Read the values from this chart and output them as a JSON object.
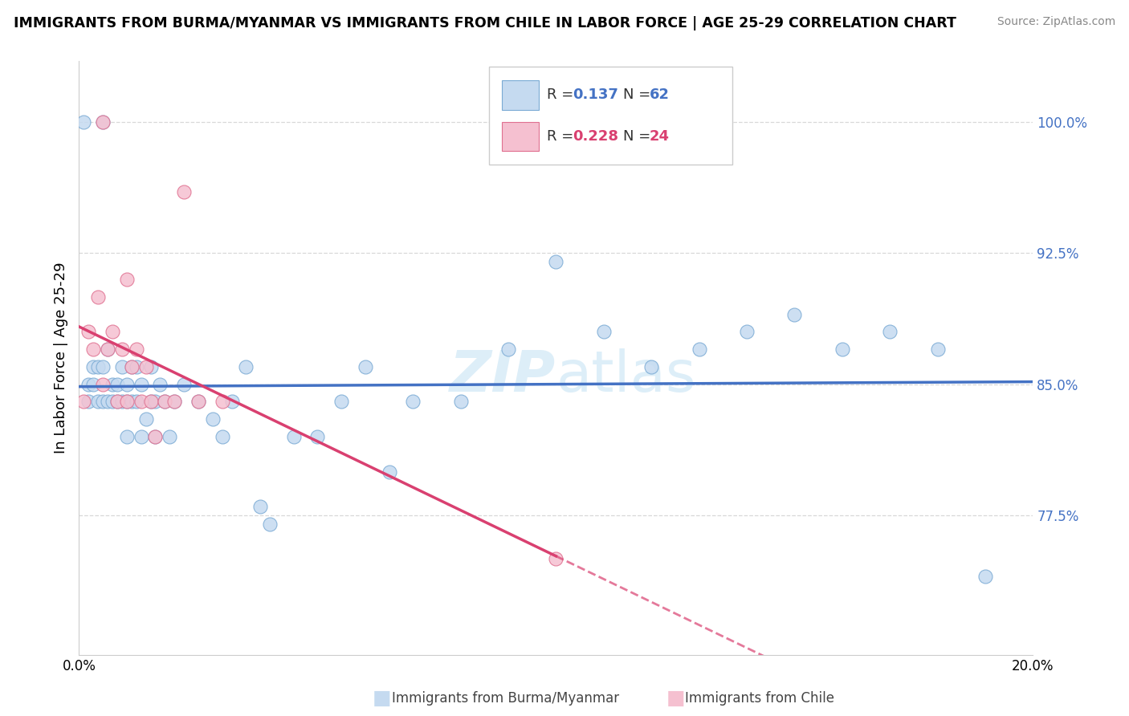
{
  "title": "IMMIGRANTS FROM BURMA/MYANMAR VS IMMIGRANTS FROM CHILE IN LABOR FORCE | AGE 25-29 CORRELATION CHART",
  "source": "Source: ZipAtlas.com",
  "ylabel": "In Labor Force | Age 25-29",
  "xlim": [
    0.0,
    0.2
  ],
  "ylim": [
    0.695,
    1.035
  ],
  "yticks": [
    0.775,
    0.85,
    0.925,
    1.0
  ],
  "ytick_labels": [
    "77.5%",
    "85.0%",
    "92.5%",
    "100.0%"
  ],
  "xticks": [
    0.0,
    0.05,
    0.1,
    0.15,
    0.2
  ],
  "xtick_labels": [
    "0.0%",
    "",
    "",
    "",
    "20.0%"
  ],
  "blue_r": 0.137,
  "blue_n": 62,
  "pink_r": 0.228,
  "pink_n": 24,
  "blue_fill": "#c5daf0",
  "blue_edge": "#7aaad4",
  "pink_fill": "#f5c0d0",
  "pink_edge": "#e07090",
  "blue_line": "#4472c4",
  "pink_line": "#d94070",
  "dashed_color": "#d090a0",
  "grid_color": "#d8d8d8",
  "watermark_color": "#ddeef8",
  "blue_x": [
    0.001,
    0.002,
    0.002,
    0.003,
    0.003,
    0.004,
    0.004,
    0.005,
    0.005,
    0.005,
    0.006,
    0.006,
    0.007,
    0.007,
    0.008,
    0.008,
    0.009,
    0.009,
    0.01,
    0.01,
    0.01,
    0.011,
    0.011,
    0.012,
    0.012,
    0.013,
    0.013,
    0.014,
    0.015,
    0.015,
    0.016,
    0.016,
    0.017,
    0.018,
    0.019,
    0.02,
    0.022,
    0.025,
    0.028,
    0.03,
    0.032,
    0.035,
    0.038,
    0.04,
    0.045,
    0.05,
    0.055,
    0.06,
    0.065,
    0.07,
    0.08,
    0.09,
    0.1,
    0.11,
    0.12,
    0.13,
    0.14,
    0.15,
    0.16,
    0.17,
    0.18,
    0.19
  ],
  "blue_y": [
    1.0,
    0.85,
    0.84,
    0.86,
    0.85,
    0.86,
    0.84,
    1.0,
    0.86,
    0.84,
    0.84,
    0.87,
    0.85,
    0.84,
    0.85,
    0.84,
    0.86,
    0.84,
    0.85,
    0.84,
    0.82,
    0.84,
    0.86,
    0.86,
    0.84,
    0.85,
    0.82,
    0.83,
    0.86,
    0.84,
    0.84,
    0.82,
    0.85,
    0.84,
    0.82,
    0.84,
    0.85,
    0.84,
    0.83,
    0.82,
    0.84,
    0.86,
    0.78,
    0.77,
    0.82,
    0.82,
    0.84,
    0.86,
    0.8,
    0.84,
    0.84,
    0.87,
    0.92,
    0.88,
    0.86,
    0.87,
    0.88,
    0.89,
    0.87,
    0.88,
    0.87,
    0.74
  ],
  "pink_x": [
    0.001,
    0.002,
    0.003,
    0.004,
    0.005,
    0.005,
    0.006,
    0.007,
    0.008,
    0.009,
    0.01,
    0.01,
    0.011,
    0.012,
    0.013,
    0.014,
    0.015,
    0.016,
    0.018,
    0.02,
    0.022,
    0.025,
    0.03,
    0.1
  ],
  "pink_y": [
    0.84,
    0.88,
    0.87,
    0.9,
    1.0,
    0.85,
    0.87,
    0.88,
    0.84,
    0.87,
    0.91,
    0.84,
    0.86,
    0.87,
    0.84,
    0.86,
    0.84,
    0.82,
    0.84,
    0.84,
    0.96,
    0.84,
    0.84,
    0.75
  ],
  "bottom_label_blue": "Immigrants from Burma/Myanmar",
  "bottom_label_pink": "Immigrants from Chile"
}
